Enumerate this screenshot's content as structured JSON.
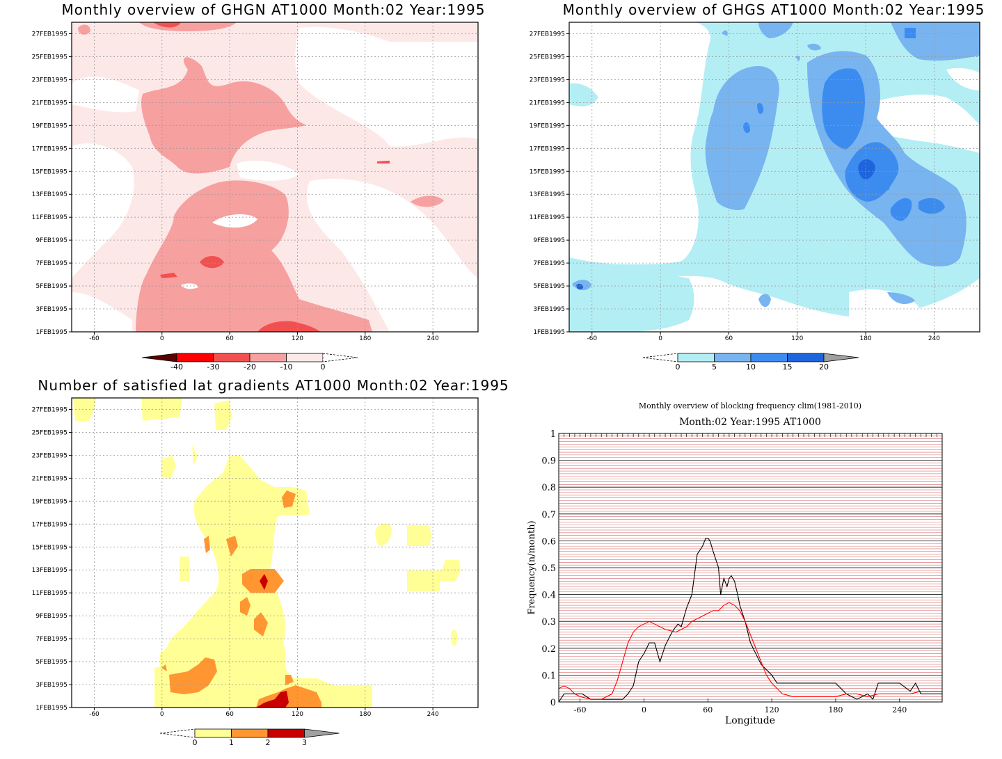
{
  "panels": {
    "ghgn": {
      "title": "Monthly overview of GHGN AT1000 Month:02 Year:1995"
    },
    "ghgs": {
      "title": "Monthly overview of GHGS AT1000 Month:02 Year:1995"
    },
    "grad": {
      "title": "Number of satisfied lat gradients AT1000 Month:02 Year:1995"
    },
    "freq": {
      "title1": "Monthly overview of blocking frequency clim(1981-2010)",
      "title2": "Month:02 Year:1995  AT1000",
      "xlabel": "Longitude",
      "ylabel": "Frequency(n/month)"
    }
  },
  "shared": {
    "date_ticks": [
      "1FEB1995",
      "3FEB1995",
      "5FEB1995",
      "7FEB1995",
      "9FEB1995",
      "11FEB1995",
      "13FEB1995",
      "15FEB1995",
      "17FEB1995",
      "19FEB1995",
      "21FEB1995",
      "23FEB1995",
      "25FEB1995",
      "27FEB1995"
    ],
    "lon_ticks": [
      -60,
      0,
      60,
      120,
      180,
      240
    ],
    "lon_range": [
      -80,
      280
    ]
  },
  "colorbars": {
    "ghgn": {
      "labels": [
        "-40",
        "-30",
        "-20",
        "-10",
        "0"
      ],
      "colors": [
        "#5a0000",
        "#ff0000",
        "#f25050",
        "#f7a0a0",
        "#fde8e8"
      ]
    },
    "ghgs": {
      "labels": [
        "0",
        "5",
        "10",
        "15",
        "20"
      ],
      "colors": [
        "#b4eef5",
        "#78b4f0",
        "#3c8cf0",
        "#1e64dc",
        "#a0a0a0"
      ]
    },
    "grad": {
      "labels": [
        "0",
        "1",
        "2",
        "3"
      ],
      "colors": [
        "#ffff96",
        "#ff9632",
        "#c80000",
        "#a0a0a0"
      ]
    }
  },
  "chart_data": [
    {
      "type": "heatmap",
      "title": "Monthly overview of GHGN AT1000 Month:02 Year:1995",
      "xlabel": "",
      "ylabel": "",
      "xlim": [
        -80,
        280
      ],
      "ylim": [
        "1FEB1995",
        "28FEB1995"
      ],
      "levels": [
        -40,
        -30,
        -20,
        -10,
        0
      ],
      "colors": {
        "below_-30": "#ff0000",
        "-30_-20": "#f25050",
        "-20_-10": "#f7a0a0",
        "-10_0": "#fde8e8",
        "above_0": "#ffffff"
      },
      "grid": true
    },
    {
      "type": "heatmap",
      "title": "Monthly overview of GHGS AT1000 Month:02 Year:1995",
      "xlabel": "",
      "ylabel": "",
      "xlim": [
        -80,
        280
      ],
      "ylim": [
        "1FEB1995",
        "28FEB1995"
      ],
      "levels": [
        0,
        5,
        10,
        15,
        20
      ],
      "colors": {
        "0_5": "#b4eef5",
        "5_10": "#78b4f0",
        "10_15": "#3c8cf0",
        "15_20": "#1e64dc"
      },
      "grid": true
    },
    {
      "type": "heatmap",
      "title": "Number of satisfied lat gradients AT1000 Month:02 Year:1995",
      "xlabel": "",
      "ylabel": "",
      "xlim": [
        -80,
        280
      ],
      "ylim": [
        "1FEB1995",
        "28FEB1995"
      ],
      "levels": [
        0,
        1,
        2,
        3
      ],
      "colors": {
        "0_1": "#ffff96",
        "1_2": "#ff9632",
        "2_3": "#c80000"
      },
      "grid": true
    },
    {
      "type": "line",
      "title": "Monthly overview of blocking frequency clim(1981-2010)",
      "subtitle": "Month:02 Year:1995  AT1000",
      "xlabel": "Longitude",
      "ylabel": "Frequency(n/month)",
      "xlim": [
        -80,
        280
      ],
      "ylim": [
        0,
        1
      ],
      "yticks": [
        "0",
        "0.1",
        "0.2",
        "0.3",
        "0.4",
        "0.5",
        "0.6",
        "0.7",
        "0.8",
        "0.9",
        "1"
      ],
      "xticks": [
        -60,
        0,
        60,
        120,
        180,
        240
      ],
      "grid": true,
      "series": [
        {
          "color": "#000000",
          "x": [
            -80,
            -75,
            -72,
            -65,
            -58,
            -50,
            -45,
            -40,
            -30,
            -20,
            -15,
            -10,
            -5,
            0,
            5,
            10,
            15,
            20,
            25,
            28,
            32,
            35,
            40,
            45,
            50,
            55,
            58,
            60,
            62,
            65,
            70,
            72,
            75,
            78,
            80,
            82,
            85,
            88,
            90,
            95,
            100,
            105,
            110,
            115,
            120,
            125,
            130,
            135,
            140,
            150,
            160,
            170,
            180,
            190,
            200,
            210,
            215,
            220,
            230,
            240,
            250,
            255,
            260,
            270,
            280
          ],
          "y": [
            0,
            0.03,
            0.03,
            0.03,
            0.03,
            0.01,
            0.01,
            0.01,
            0.01,
            0.01,
            0.03,
            0.06,
            0.15,
            0.18,
            0.22,
            0.22,
            0.15,
            0.21,
            0.25,
            0.27,
            0.29,
            0.28,
            0.35,
            0.4,
            0.55,
            0.58,
            0.61,
            0.61,
            0.6,
            0.56,
            0.5,
            0.4,
            0.46,
            0.43,
            0.46,
            0.47,
            0.45,
            0.4,
            0.36,
            0.3,
            0.22,
            0.18,
            0.14,
            0.12,
            0.1,
            0.07,
            0.07,
            0.07,
            0.07,
            0.07,
            0.07,
            0.07,
            0.07,
            0.03,
            0.01,
            0.03,
            0.01,
            0.07,
            0.07,
            0.07,
            0.04,
            0.07,
            0.03,
            0.03,
            0.03
          ]
        },
        {
          "color": "#ff0000",
          "x": [
            -80,
            -75,
            -70,
            -65,
            -60,
            -50,
            -40,
            -30,
            -25,
            -20,
            -15,
            -10,
            -5,
            0,
            5,
            10,
            20,
            30,
            40,
            45,
            50,
            55,
            60,
            65,
            70,
            75,
            80,
            85,
            90,
            95,
            100,
            105,
            110,
            115,
            120,
            130,
            140,
            150,
            160,
            170,
            180,
            190,
            200,
            210,
            220,
            230,
            240,
            250,
            260,
            270,
            280
          ],
          "y": [
            0.05,
            0.06,
            0.05,
            0.03,
            0.02,
            0.01,
            0.01,
            0.03,
            0.08,
            0.15,
            0.22,
            0.26,
            0.28,
            0.29,
            0.3,
            0.29,
            0.27,
            0.26,
            0.28,
            0.3,
            0.31,
            0.32,
            0.33,
            0.34,
            0.34,
            0.36,
            0.37,
            0.36,
            0.34,
            0.3,
            0.25,
            0.2,
            0.15,
            0.1,
            0.07,
            0.03,
            0.02,
            0.02,
            0.02,
            0.02,
            0.02,
            0.03,
            0.03,
            0.02,
            0.03,
            0.03,
            0.03,
            0.03,
            0.04,
            0.04,
            0.04
          ]
        }
      ]
    }
  ]
}
